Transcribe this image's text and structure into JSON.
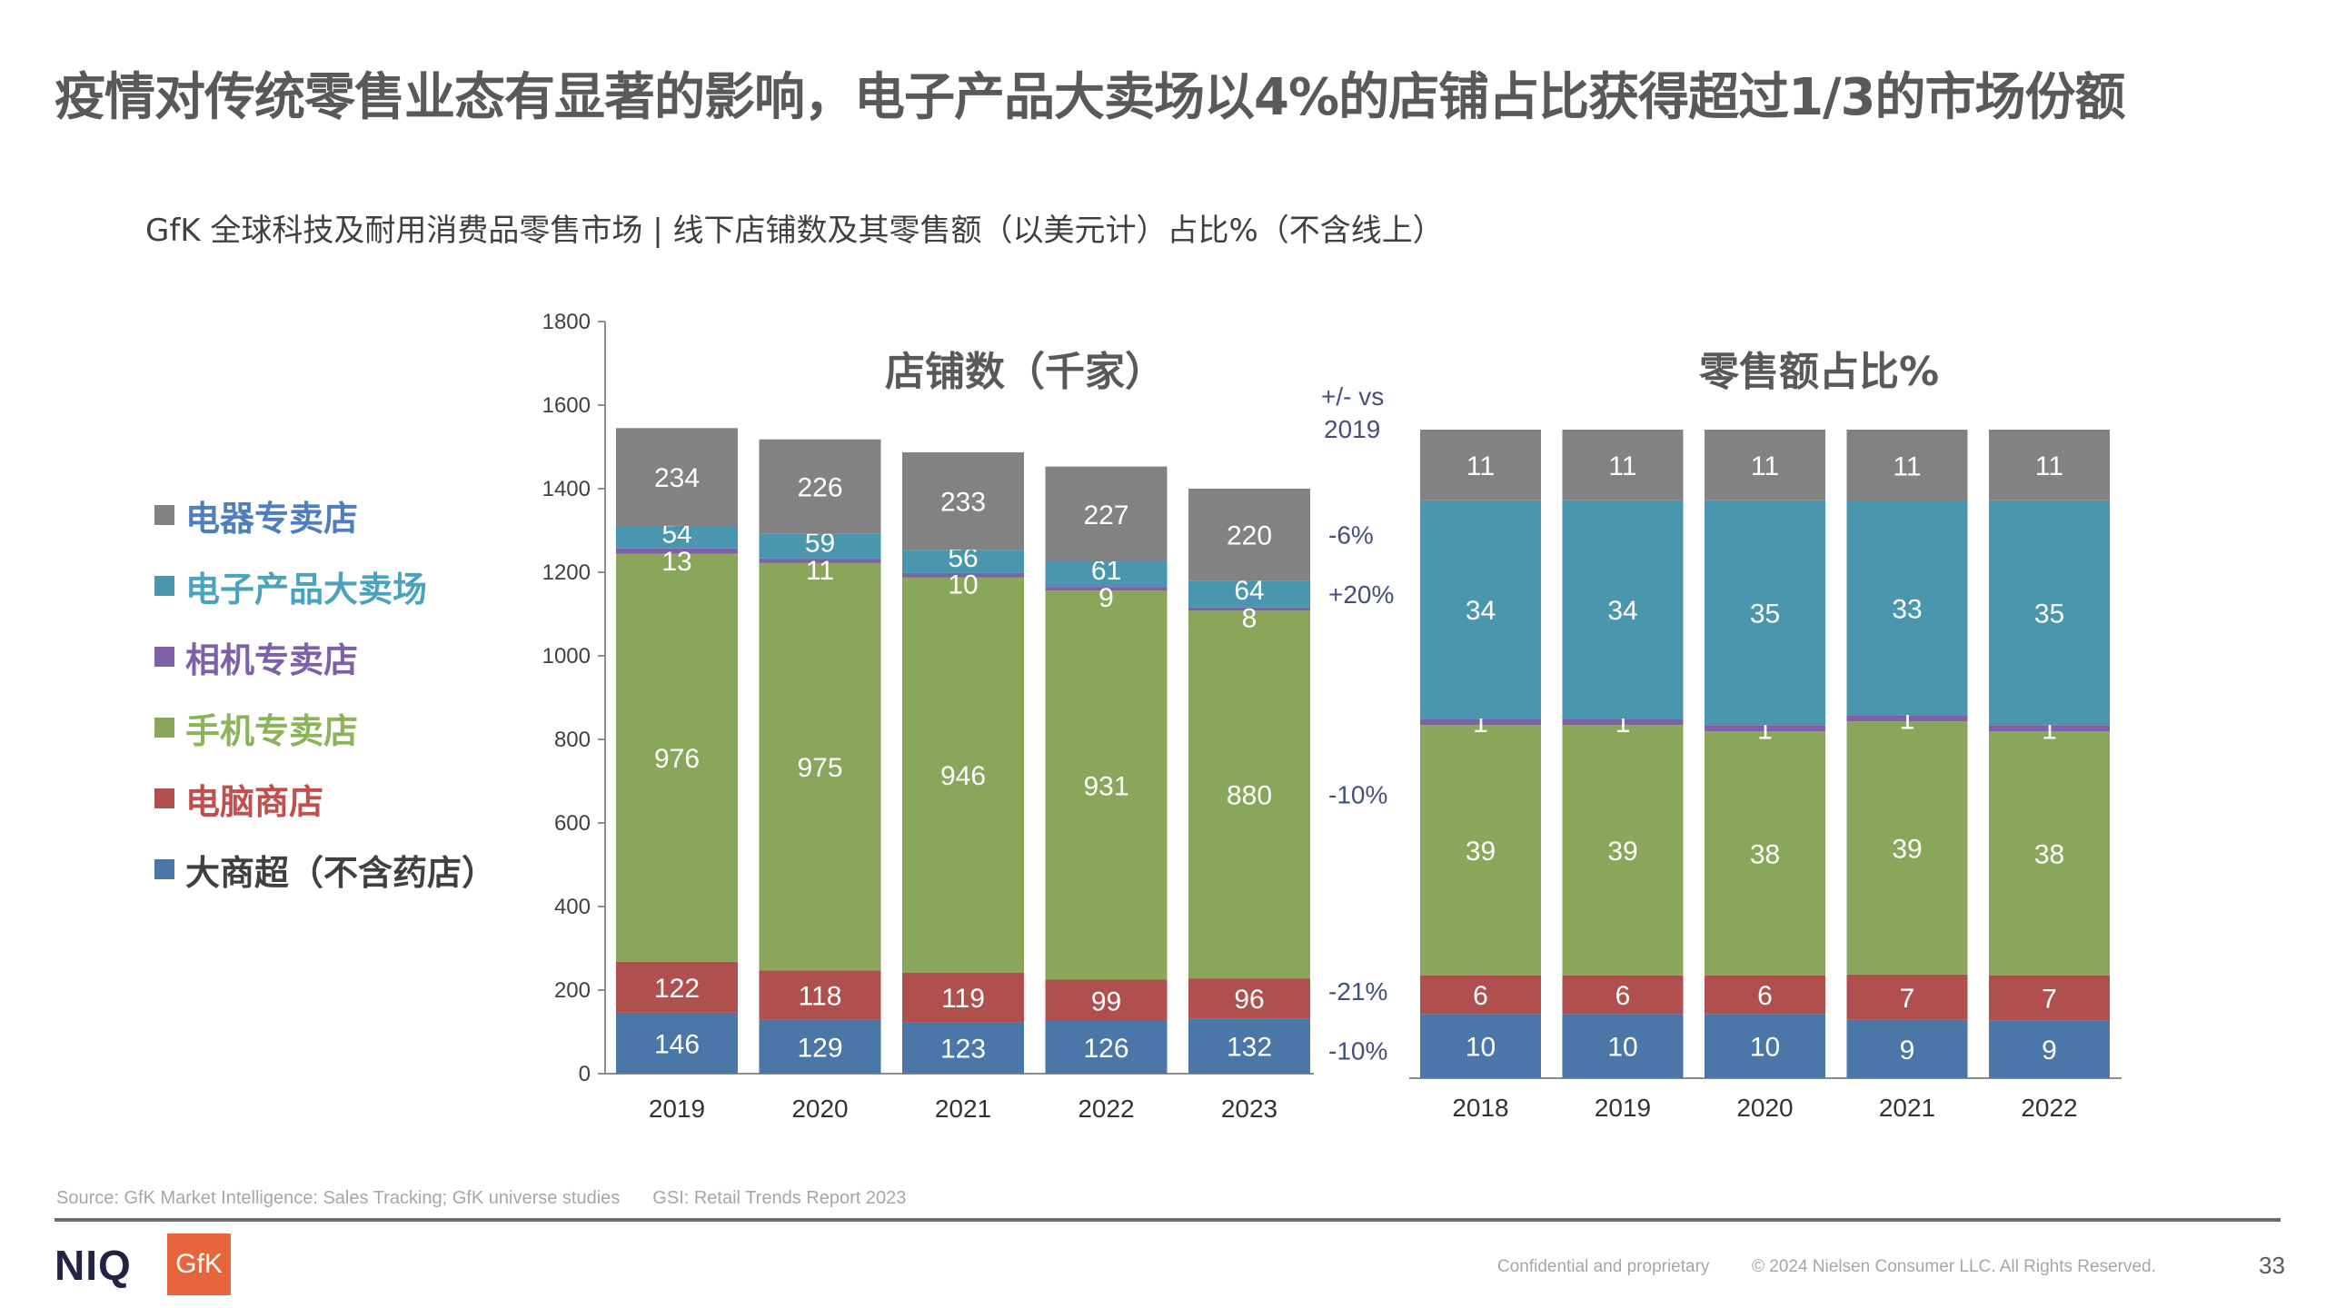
{
  "header": {
    "title": "疫情对传统零售业态有显著的影响，电子产品大卖场以4%的店铺占比获得超过1/3的市场份额",
    "subtitle": "GfK 全球科技及耐用消费品零售市场 | 线下店铺数及其零售额（以美元计）占比%（不含线上）"
  },
  "legend": [
    {
      "label": "电器专卖店",
      "swatch": "#828282",
      "text_color": "#4f7ebc"
    },
    {
      "label": "电子产品大卖场",
      "swatch": "#4a96ae",
      "text_color": "#4aa3bd"
    },
    {
      "label": "相机专卖店",
      "swatch": "#7e60a8",
      "text_color": "#7e60a8"
    },
    {
      "label": "手机专卖店",
      "swatch": "#8aa65a",
      "text_color": "#8ab35a"
    },
    {
      "label": "电脑商店",
      "swatch": "#b0504e",
      "text_color": "#c0504d"
    },
    {
      "label": "大商超（不含药店）",
      "swatch": "#4a76a8",
      "text_color": "#404040"
    }
  ],
  "chart_data": [
    {
      "type": "bar",
      "stacked": true,
      "title": "店铺数（千家）",
      "xlabel": "",
      "ylabel": "",
      "categories": [
        "2019",
        "2020",
        "2021",
        "2022",
        "2023"
      ],
      "ylim": [
        0,
        1800
      ],
      "yticks": [
        0,
        200,
        400,
        600,
        800,
        1000,
        1200,
        1400,
        1600,
        1800
      ],
      "grid": false,
      "series": [
        {
          "name": "大商超（不含药店）",
          "color": "#4a76a8",
          "values": [
            146,
            129,
            123,
            126,
            132
          ]
        },
        {
          "name": "电脑商店",
          "color": "#b0504e",
          "values": [
            122,
            118,
            119,
            99,
            96
          ]
        },
        {
          "name": "手机专卖店",
          "color": "#8aa65a",
          "values": [
            976,
            975,
            946,
            931,
            880
          ]
        },
        {
          "name": "相机专卖店",
          "color": "#7e60a8",
          "values": [
            13,
            11,
            10,
            9,
            8
          ]
        },
        {
          "name": "电子产品大卖场",
          "color": "#4a96ae",
          "values": [
            54,
            59,
            56,
            61,
            64
          ]
        },
        {
          "name": "电器专卖店",
          "color": "#828282",
          "values": [
            234,
            226,
            233,
            227,
            220
          ]
        }
      ],
      "annotation_header": [
        "+/- vs",
        "2019"
      ],
      "annotations": [
        {
          "series": "电器专卖店",
          "text": "-6%"
        },
        {
          "series": "电子产品大卖场",
          "text": "+20%"
        },
        {
          "series": "手机专卖店",
          "text": "-10%"
        },
        {
          "series": "电脑商店",
          "text": "-21%"
        },
        {
          "series": "大商超（不含药店）",
          "text": "-10%"
        }
      ]
    },
    {
      "type": "bar",
      "stacked": true,
      "percent": true,
      "title": "零售额占比%",
      "xlabel": "",
      "ylabel": "",
      "categories": [
        "2018",
        "2019",
        "2020",
        "2021",
        "2022"
      ],
      "ylim": [
        0,
        100
      ],
      "grid": false,
      "series": [
        {
          "name": "大商超（不含药店）",
          "color": "#4a76a8",
          "values": [
            10,
            10,
            10,
            9,
            9
          ]
        },
        {
          "name": "电脑商店",
          "color": "#b0504e",
          "values": [
            6,
            6,
            6,
            7,
            7
          ]
        },
        {
          "name": "手机专卖店",
          "color": "#8aa65a",
          "values": [
            39,
            39,
            38,
            39,
            38
          ]
        },
        {
          "name": "相机专卖店",
          "color": "#7e60a8",
          "values": [
            1,
            1,
            1,
            1,
            1
          ]
        },
        {
          "name": "电子产品大卖场",
          "color": "#4a96ae",
          "values": [
            34,
            34,
            35,
            33,
            35
          ]
        },
        {
          "name": "电器专卖店",
          "color": "#828282",
          "values": [
            11,
            11,
            11,
            11,
            11
          ]
        }
      ]
    }
  ],
  "footer": {
    "source": "Source: GfK Market Intelligence: Sales Tracking; GfK universe studies",
    "source2": "GSI: Retail Trends Report 2023",
    "niq_logo": "NIQ",
    "gfk_logo": "GfK",
    "confidential": "Confidential and proprietary",
    "copyright": "© 2024 Nielsen Consumer LLC. All Rights Reserved.",
    "page_number": "33"
  }
}
